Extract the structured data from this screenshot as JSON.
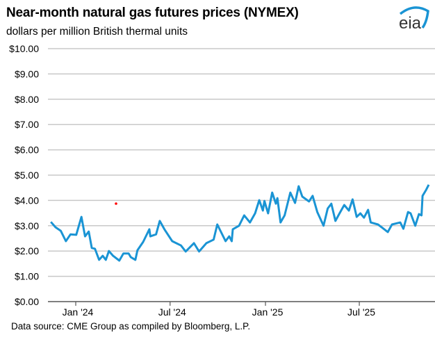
{
  "header": {
    "title": "Near-month natural gas futures prices (NYMEX)",
    "subtitle": "dollars per million British thermal units",
    "logo_text": "eia"
  },
  "footer": {
    "source": "Data source: CME Group as compiled by Bloomberg, L.P."
  },
  "colors": {
    "line": "#1a94d4",
    "grid": "#c8c8c8",
    "axis": "#555555",
    "marker": "#ff0000",
    "logo_arc": "#1a94d4",
    "logo_text": "#333333"
  },
  "chart_data": {
    "type": "line",
    "title": "Near-month natural gas futures prices (NYMEX)",
    "ylabel": "dollars per million British thermal units",
    "xlabel": "",
    "ylim": [
      0,
      10
    ],
    "xlim": [
      "2023-11-14",
      "2025-11-14"
    ],
    "grid": true,
    "y_ticks": [
      {
        "v": 0,
        "label": "$0.00"
      },
      {
        "v": 1,
        "label": "$1.00"
      },
      {
        "v": 2,
        "label": "$2.00"
      },
      {
        "v": 3,
        "label": "$3.00"
      },
      {
        "v": 4,
        "label": "$4.00"
      },
      {
        "v": 5,
        "label": "$5.00"
      },
      {
        "v": 6,
        "label": "$6.00"
      },
      {
        "v": 7,
        "label": "$7.00"
      },
      {
        "v": 8,
        "label": "$8.00"
      },
      {
        "v": 9,
        "label": "$9.00"
      },
      {
        "v": 10,
        "label": "$10.00"
      }
    ],
    "x_ticks": [
      {
        "date": "2024-01-01",
        "label": "Jan '24"
      },
      {
        "date": "2024-07-01",
        "label": "Jul '24"
      },
      {
        "date": "2025-01-01",
        "label": "Jan '25"
      },
      {
        "date": "2025-07-01",
        "label": "Jul '25"
      }
    ],
    "series": [
      {
        "points": [
          [
            "2023-11-14",
            3.15
          ],
          [
            "2023-11-23",
            2.94
          ],
          [
            "2023-12-03",
            2.8
          ],
          [
            "2023-12-13",
            2.39
          ],
          [
            "2023-12-22",
            2.66
          ],
          [
            "2024-01-02",
            2.64
          ],
          [
            "2024-01-12",
            3.35
          ],
          [
            "2024-01-19",
            2.58
          ],
          [
            "2024-01-26",
            2.77
          ],
          [
            "2024-02-01",
            2.12
          ],
          [
            "2024-02-07",
            2.09
          ],
          [
            "2024-02-15",
            1.65
          ],
          [
            "2024-02-22",
            1.81
          ],
          [
            "2024-02-28",
            1.65
          ],
          [
            "2024-03-05",
            2.0
          ],
          [
            "2024-03-13",
            1.81
          ],
          [
            "2024-03-25",
            1.62
          ],
          [
            "2024-04-02",
            1.9
          ],
          [
            "2024-04-12",
            1.9
          ],
          [
            "2024-04-16",
            1.76
          ],
          [
            "2024-04-25",
            1.65
          ],
          [
            "2024-04-29",
            2.03
          ],
          [
            "2024-05-10",
            2.36
          ],
          [
            "2024-05-22",
            2.86
          ],
          [
            "2024-05-24",
            2.58
          ],
          [
            "2024-06-04",
            2.66
          ],
          [
            "2024-06-11",
            3.19
          ],
          [
            "2024-06-20",
            2.86
          ],
          [
            "2024-07-05",
            2.39
          ],
          [
            "2024-07-22",
            2.22
          ],
          [
            "2024-07-31",
            1.98
          ],
          [
            "2024-08-16",
            2.31
          ],
          [
            "2024-08-26",
            1.98
          ],
          [
            "2024-09-09",
            2.31
          ],
          [
            "2024-09-23",
            2.45
          ],
          [
            "2024-09-30",
            3.05
          ],
          [
            "2024-10-16",
            2.39
          ],
          [
            "2024-10-23",
            2.58
          ],
          [
            "2024-10-28",
            2.39
          ],
          [
            "2024-10-30",
            2.86
          ],
          [
            "2024-11-11",
            3.0
          ],
          [
            "2024-11-21",
            3.41
          ],
          [
            "2024-12-02",
            3.13
          ],
          [
            "2024-12-12",
            3.49
          ],
          [
            "2024-12-20",
            4.01
          ],
          [
            "2024-12-27",
            3.6
          ],
          [
            "2024-12-30",
            3.98
          ],
          [
            "2025-01-06",
            3.49
          ],
          [
            "2025-01-14",
            4.31
          ],
          [
            "2025-01-21",
            3.87
          ],
          [
            "2025-01-24",
            4.09
          ],
          [
            "2025-01-30",
            3.13
          ],
          [
            "2025-02-07",
            3.41
          ],
          [
            "2025-02-18",
            4.31
          ],
          [
            "2025-02-27",
            3.9
          ],
          [
            "2025-03-06",
            4.56
          ],
          [
            "2025-03-13",
            4.15
          ],
          [
            "2025-03-26",
            3.96
          ],
          [
            "2025-04-02",
            4.18
          ],
          [
            "2025-04-11",
            3.54
          ],
          [
            "2025-04-23",
            3.0
          ],
          [
            "2025-05-01",
            3.68
          ],
          [
            "2025-05-08",
            3.87
          ],
          [
            "2025-05-16",
            3.19
          ],
          [
            "2025-05-23",
            3.46
          ],
          [
            "2025-06-02",
            3.82
          ],
          [
            "2025-06-11",
            3.6
          ],
          [
            "2025-06-18",
            4.04
          ],
          [
            "2025-06-26",
            3.35
          ],
          [
            "2025-07-03",
            3.49
          ],
          [
            "2025-07-10",
            3.32
          ],
          [
            "2025-07-18",
            3.63
          ],
          [
            "2025-07-23",
            3.13
          ],
          [
            "2025-08-06",
            3.05
          ],
          [
            "2025-08-15",
            2.91
          ],
          [
            "2025-08-25",
            2.75
          ],
          [
            "2025-09-02",
            3.05
          ],
          [
            "2025-09-18",
            3.13
          ],
          [
            "2025-09-24",
            2.88
          ],
          [
            "2025-10-03",
            3.54
          ],
          [
            "2025-10-08",
            3.49
          ],
          [
            "2025-10-17",
            3.0
          ],
          [
            "2025-10-24",
            3.46
          ],
          [
            "2025-10-29",
            3.41
          ],
          [
            "2025-10-31",
            4.18
          ],
          [
            "2025-11-07",
            4.42
          ],
          [
            "2025-11-12",
            4.62
          ]
        ]
      }
    ]
  }
}
